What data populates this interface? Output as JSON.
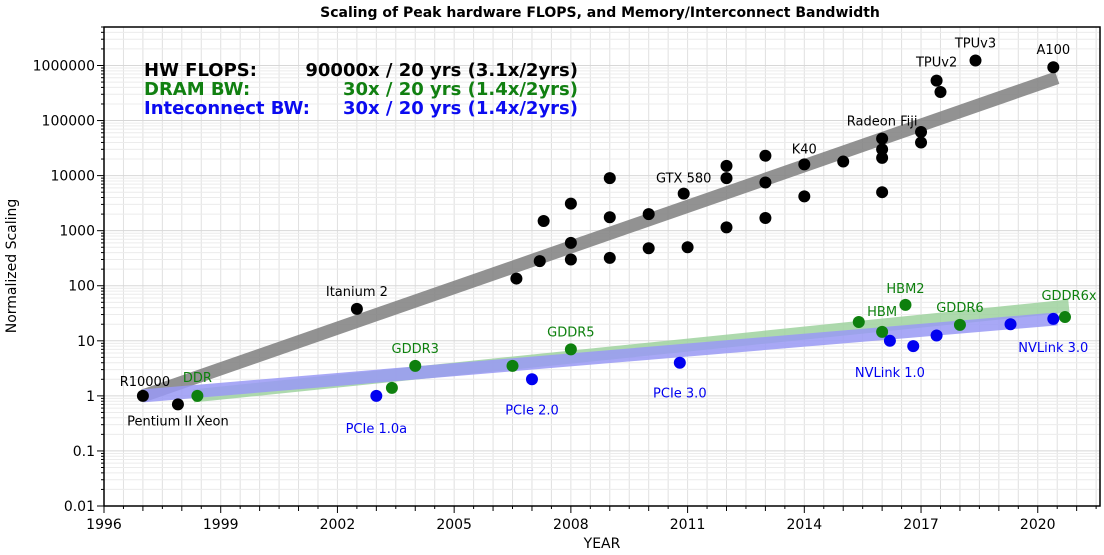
{
  "chart_data": {
    "type": "scatter",
    "title": "Scaling of Peak hardware FLOPS, and Memory/Interconnect Bandwidth",
    "xlabel": "YEAR",
    "ylabel": "Normalized Scaling",
    "xlim": [
      1996,
      2021.6
    ],
    "ylim": [
      0.01,
      5000000
    ],
    "yscale": "log",
    "grid": true,
    "x_ticks": [
      "1996",
      "1999",
      "2002",
      "2005",
      "2008",
      "2011",
      "2014",
      "2017",
      "2020"
    ],
    "y_ticks": [
      "0.01",
      "0.1",
      "1",
      "10",
      "100",
      "1000",
      "10000",
      "100000",
      "1000000"
    ],
    "summary": [
      {
        "label": "HW FLOPS:",
        "value": "90000x / 20 yrs (3.1x/2yrs)",
        "color": "#000000"
      },
      {
        "label": "DRAM BW:",
        "value": "30x / 20 yrs (1.4x/2yrs)",
        "color": "#118011"
      },
      {
        "label": "Inteconnect BW:",
        "value": "30x / 20 yrs (1.4x/2yrs)",
        "color": "#0b0bf0"
      }
    ],
    "trend_lines": [
      {
        "color": "#808080",
        "x": [
          1997.0,
          2020.5
        ],
        "y": [
          1.0,
          600000
        ]
      },
      {
        "color": "#9fd39f",
        "x": [
          1998.3,
          2020.8
        ],
        "y": [
          1.0,
          43
        ]
      },
      {
        "color": "#9a9af5",
        "x": [
          1997.0,
          2020.5
        ],
        "y": [
          1.0,
          25
        ]
      }
    ],
    "series": [
      {
        "color": "#000000",
        "points": [
          {
            "x": 1997.0,
            "y": 1.0,
            "label": "R10000"
          },
          {
            "x": 1997.9,
            "y": 0.7,
            "label": "Pentium II Xeon"
          },
          {
            "x": 2002.5,
            "y": 38,
            "label": "Itanium 2"
          },
          {
            "x": 2006.6,
            "y": 135
          },
          {
            "x": 2007.2,
            "y": 280
          },
          {
            "x": 2007.3,
            "y": 1500
          },
          {
            "x": 2008.0,
            "y": 300
          },
          {
            "x": 2008.0,
            "y": 600
          },
          {
            "x": 2008.0,
            "y": 3100
          },
          {
            "x": 2009.0,
            "y": 320
          },
          {
            "x": 2009.0,
            "y": 1750
          },
          {
            "x": 2009.0,
            "y": 9000
          },
          {
            "x": 2010.0,
            "y": 480
          },
          {
            "x": 2010.0,
            "y": 2000
          },
          {
            "x": 2010.9,
            "y": 4700,
            "label": "GTX 580"
          },
          {
            "x": 2011.0,
            "y": 500
          },
          {
            "x": 2012.0,
            "y": 1150
          },
          {
            "x": 2012.0,
            "y": 9000
          },
          {
            "x": 2012.0,
            "y": 15000
          },
          {
            "x": 2013.0,
            "y": 1700
          },
          {
            "x": 2013.0,
            "y": 7500
          },
          {
            "x": 2013.0,
            "y": 23000
          },
          {
            "x": 2014.0,
            "y": 4200
          },
          {
            "x": 2014.0,
            "y": 16000,
            "label": "K40"
          },
          {
            "x": 2015.0,
            "y": 18000
          },
          {
            "x": 2016.0,
            "y": 5000
          },
          {
            "x": 2016.0,
            "y": 21000
          },
          {
            "x": 2016.0,
            "y": 30000
          },
          {
            "x": 2016.0,
            "y": 47000,
            "label": "Radeon Fiji"
          },
          {
            "x": 2017.0,
            "y": 40000
          },
          {
            "x": 2017.0,
            "y": 62000
          },
          {
            "x": 2017.5,
            "y": 330000
          },
          {
            "x": 2017.4,
            "y": 530000,
            "label": "TPUv2"
          },
          {
            "x": 2018.4,
            "y": 1230000,
            "label": "TPUv3"
          },
          {
            "x": 2020.4,
            "y": 930000,
            "label": "A100"
          }
        ]
      },
      {
        "color": "#0e800e",
        "points": [
          {
            "x": 1998.4,
            "y": 1.0,
            "label": "DDR"
          },
          {
            "x": 2003.4,
            "y": 1.4
          },
          {
            "x": 2004.0,
            "y": 3.5,
            "label": "GDDR3"
          },
          {
            "x": 2006.5,
            "y": 3.5
          },
          {
            "x": 2008.0,
            "y": 7.0,
            "label": "GDDR5"
          },
          {
            "x": 2015.4,
            "y": 22
          },
          {
            "x": 2016.0,
            "y": 14.5,
            "label": "HBM"
          },
          {
            "x": 2016.6,
            "y": 45,
            "label": "HBM2"
          },
          {
            "x": 2018.0,
            "y": 19.5,
            "label": "GDDR6"
          },
          {
            "x": 2020.7,
            "y": 27,
            "label": "GDDR6x"
          }
        ]
      },
      {
        "color": "#0000f0",
        "points": [
          {
            "x": 2003.0,
            "y": 1.0,
            "label": "PCIe 1.0a"
          },
          {
            "x": 2007.0,
            "y": 2.0,
            "label": "PCIe 2.0"
          },
          {
            "x": 2010.8,
            "y": 4.0,
            "label": "PCIe 3.0"
          },
          {
            "x": 2016.2,
            "y": 10,
            "label": "NVLink 1.0"
          },
          {
            "x": 2016.8,
            "y": 8.0
          },
          {
            "x": 2017.4,
            "y": 12.5
          },
          {
            "x": 2019.3,
            "y": 20
          },
          {
            "x": 2020.4,
            "y": 25,
            "label": "NVLink 3.0"
          }
        ]
      }
    ]
  }
}
